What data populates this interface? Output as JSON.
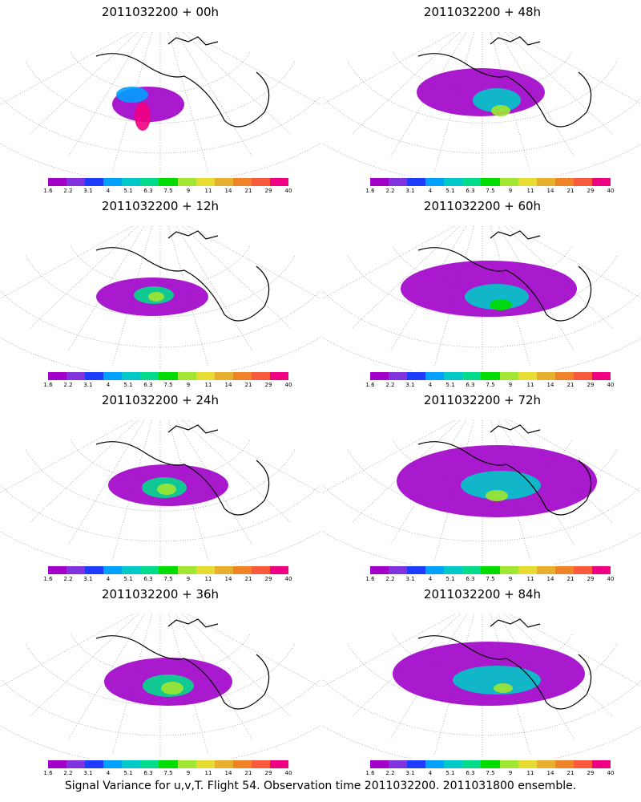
{
  "panels": [
    {
      "title": "2011032200 + 00h"
    },
    {
      "title": "2011032200 + 48h"
    },
    {
      "title": "2011032200 + 12h"
    },
    {
      "title": "2011032200 + 60h"
    },
    {
      "title": "2011032200 + 24h"
    },
    {
      "title": "2011032200 + 72h"
    },
    {
      "title": "2011032200 + 36h"
    },
    {
      "title": "2011032200 + 84h"
    }
  ],
  "colorbar": {
    "labels": [
      "1.6",
      "2.2",
      "3.1",
      "4",
      "5.1",
      "6.3",
      "7.5",
      "9",
      "11",
      "14",
      "21",
      "29",
      "40"
    ],
    "colors": [
      "#a000c8",
      "#8232dc",
      "#1e3cff",
      "#00a0ff",
      "#00c8c8",
      "#00dc8c",
      "#00dc00",
      "#a0e632",
      "#e6dc32",
      "#e6af2d",
      "#f08228",
      "#fa5a3c",
      "#f00082"
    ]
  },
  "footer": "Signal Variance for u,v,T. Flight 54. Observation time 2011032200. 2011031800 ensemble."
}
